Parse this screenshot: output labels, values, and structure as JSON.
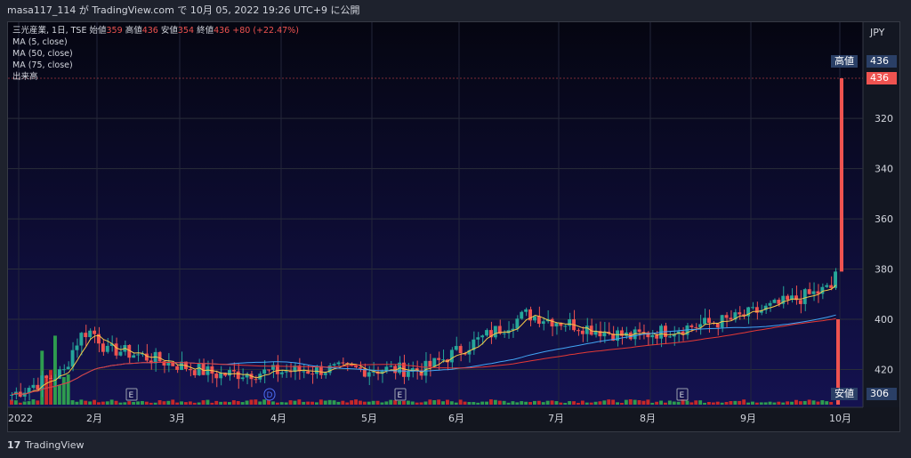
{
  "header": {
    "text": "masa117_114 が TradingView.com で 10月 05, 2022 19:26 UTC+9 に公開"
  },
  "legend": {
    "symbol_line": "三光産業, 1日, TSE",
    "open_label": "始値",
    "open_value": "359",
    "high_label": "高値",
    "high_value": "436",
    "low_label": "安値",
    "low_value": "354",
    "close_label": "終値",
    "close_value": "436",
    "change": "+80 (+22.47%)",
    "ma5": "MA (5, close)",
    "ma50": "MA (50, close)",
    "ma75": "MA (75, close)",
    "volume": "出来高"
  },
  "price_axis": {
    "currency": "JPY",
    "ticks": [
      "420",
      "400",
      "380",
      "360",
      "340",
      "320"
    ],
    "high_tag_label": "高値",
    "high_tag_value": "436",
    "last_price_tag": "436",
    "low_tag_label": "安値",
    "low_tag_value": "306"
  },
  "time_axis": {
    "labels": [
      "2022",
      "2月",
      "3月",
      "4月",
      "5月",
      "6月",
      "7月",
      "8月",
      "9月",
      "10月"
    ]
  },
  "events": [
    "E",
    "D",
    "E",
    "E"
  ],
  "footer": {
    "brand": "TradingView"
  },
  "colors": {
    "up": "#26a69a",
    "down": "#ef5350",
    "ma5": "#f7c948",
    "ma50": "#42a5f5",
    "ma75": "#e53935",
    "volume_up": "#2e9c4f",
    "volume_down": "#c62828"
  },
  "chart_data": {
    "type": "candlestick",
    "ylim": [
      300,
      450
    ],
    "y_ticks": [
      320,
      340,
      360,
      380,
      400,
      420
    ],
    "x_labels": [
      "2022",
      "2月",
      "3月",
      "4月",
      "5月",
      "6月",
      "7月",
      "8月",
      "9月",
      "10月"
    ],
    "series": [
      {
        "name": "close",
        "approx_monthly_close": [
          310,
          328,
          318,
          320,
          320,
          342,
          333,
          340,
          353,
          436
        ]
      }
    ],
    "last": {
      "open": 359,
      "high": 436,
      "low": 354,
      "close": 436,
      "change": 80,
      "change_pct": 22.47
    },
    "moving_averages": [
      "MA (5, close)",
      "MA (50, close)",
      "MA (75, close)"
    ],
    "volume_label": "出来高",
    "markers": [
      {
        "label": "E",
        "x": "2月"
      },
      {
        "label": "D",
        "x": "4月"
      },
      {
        "label": "E",
        "x": "5月"
      },
      {
        "label": "E",
        "x": "8月"
      }
    ],
    "legend_placement": "top-left",
    "grid": true
  }
}
